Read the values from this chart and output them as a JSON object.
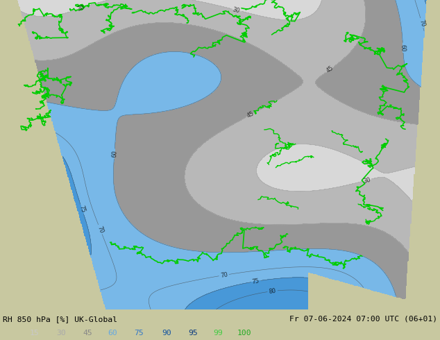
{
  "title_left": "RH 850 hPa [%] UK-Global",
  "title_right": "Fr 07-06-2024 07:00 UTC (06+01)",
  "legend_values": [
    "15",
    "30",
    "45",
    "60",
    "75",
    "90",
    "95",
    "99",
    "100"
  ],
  "legend_colors": [
    "#c8c8c8",
    "#aaaaaa",
    "#888888",
    "#64a8e0",
    "#3278c8",
    "#1454a0",
    "#0a3a80",
    "#44cc44",
    "#22aa22"
  ],
  "bg_color": "#c8c8a0",
  "bottom_bar_color": "#dcdcdc",
  "text_color": "#000000",
  "figsize": [
    6.34,
    4.9
  ],
  "dpi": 100,
  "map_fill_levels": [
    0,
    15,
    30,
    45,
    60,
    75,
    90,
    95,
    99,
    100,
    110
  ],
  "map_fill_colors": [
    "#c8c8a0",
    "#d8d8d8",
    "#b8b8b8",
    "#989898",
    "#78b8e8",
    "#4898d8",
    "#2068b8",
    "#1048a0",
    "#44cc44",
    "#22aa22"
  ],
  "contour_label_color": "#000000",
  "coast_color": "#00cc00",
  "contour_line_color": "#404040",
  "white_contour_color": "#ffffff"
}
